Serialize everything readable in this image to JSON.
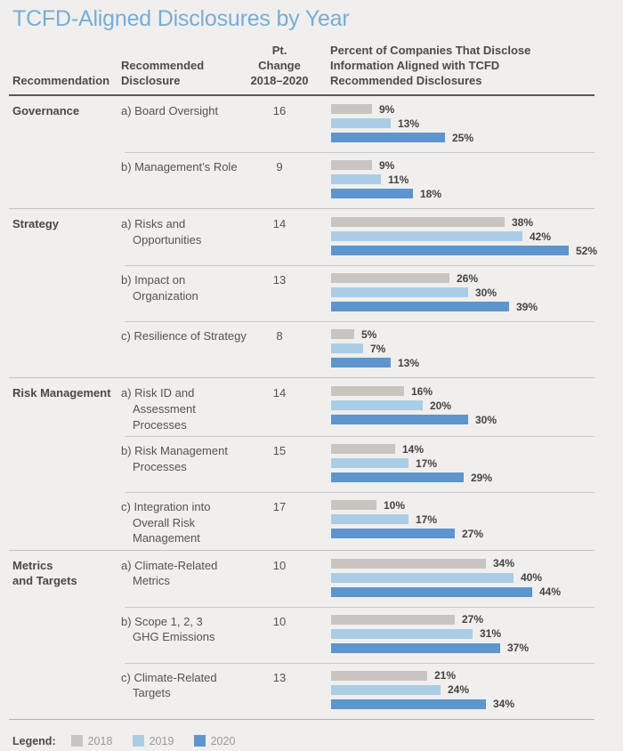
{
  "chart": {
    "title": "TCFD-Aligned Disclosures by Year",
    "columns": {
      "recommendation": {
        "lines": [
          "Recommendation"
        ]
      },
      "disclosure": {
        "lines": [
          "Recommended",
          "Disclosure"
        ]
      },
      "pt_change": {
        "lines": [
          "Pt. Change",
          "2018–2020"
        ]
      },
      "percent": {
        "lines": [
          "Percent of Companies That Disclose",
          "Information Aligned with TCFD",
          "Recommended Disclosures"
        ]
      }
    },
    "legend": {
      "label": "Legend:"
    }
  },
  "chart_data": {
    "type": "bar",
    "title": "TCFD-Aligned Disclosures by Year",
    "unit": "percent of companies",
    "xlabel": "Percent of Companies That Disclose Information Aligned with TCFD Recommended Disclosures",
    "xlim": [
      0,
      57
    ],
    "legend_position": "bottom",
    "series": [
      {
        "name": "2018",
        "color": "#c8c4c0"
      },
      {
        "name": "2019",
        "color": "#aacde5"
      },
      {
        "name": "2020",
        "color": "#5e95cd"
      }
    ],
    "sections": [
      {
        "recommendation": "Governance",
        "recommendation_lines": [
          "Governance"
        ],
        "rows": [
          {
            "disclosure": "a) Board Oversight",
            "disclosure_lines": [
              "a) Board Oversight"
            ],
            "pt_change": 16,
            "values": [
              9,
              13,
              25
            ]
          },
          {
            "disclosure": "b) Management’s Role",
            "disclosure_lines": [
              "b) Management’s Role"
            ],
            "pt_change": 9,
            "values": [
              9,
              11,
              18
            ]
          }
        ]
      },
      {
        "recommendation": "Strategy",
        "recommendation_lines": [
          "Strategy"
        ],
        "rows": [
          {
            "disclosure": "a) Risks and Opportunities",
            "disclosure_lines": [
              "a) Risks and",
              "Opportunities"
            ],
            "pt_change": 14,
            "values": [
              38,
              42,
              52
            ]
          },
          {
            "disclosure": "b) Impact on Organization",
            "disclosure_lines": [
              "b) Impact on",
              "Organization"
            ],
            "pt_change": 13,
            "values": [
              26,
              30,
              39
            ]
          },
          {
            "disclosure": "c) Resilience of Strategy",
            "disclosure_lines": [
              "c) Resilience of Strategy"
            ],
            "pt_change": 8,
            "values": [
              5,
              7,
              13
            ]
          }
        ]
      },
      {
        "recommendation": "Risk Management",
        "recommendation_lines": [
          "Risk Management"
        ],
        "rows": [
          {
            "disclosure": "a) Risk ID and Assessment Processes",
            "disclosure_lines": [
              "a) Risk ID and",
              "Assessment Processes"
            ],
            "pt_change": 14,
            "values": [
              16,
              20,
              30
            ]
          },
          {
            "disclosure": "b) Risk Management Processes",
            "disclosure_lines": [
              "b) Risk Management",
              "Processes"
            ],
            "pt_change": 15,
            "values": [
              14,
              17,
              29
            ]
          },
          {
            "disclosure": "c) Integration into Overall Risk Management",
            "disclosure_lines": [
              "c) Integration into",
              "Overall Risk",
              "Management"
            ],
            "pt_change": 17,
            "values": [
              10,
              17,
              27
            ]
          }
        ]
      },
      {
        "recommendation": "Metrics and Targets",
        "recommendation_lines": [
          "Metrics",
          "and Targets"
        ],
        "rows": [
          {
            "disclosure": "a) Climate-Related Metrics",
            "disclosure_lines": [
              "a) Climate-Related",
              "Metrics"
            ],
            "pt_change": 10,
            "values": [
              34,
              40,
              44
            ]
          },
          {
            "disclosure": "b) Scope 1, 2, 3 GHG Emissions",
            "disclosure_lines": [
              "b) Scope 1, 2, 3",
              "GHG Emissions"
            ],
            "pt_change": 10,
            "values": [
              27,
              31,
              37
            ]
          },
          {
            "disclosure": "c) Climate-Related Targets",
            "disclosure_lines": [
              "c) Climate-Related",
              "Targets"
            ],
            "pt_change": 13,
            "values": [
              21,
              24,
              34
            ]
          }
        ]
      }
    ]
  }
}
